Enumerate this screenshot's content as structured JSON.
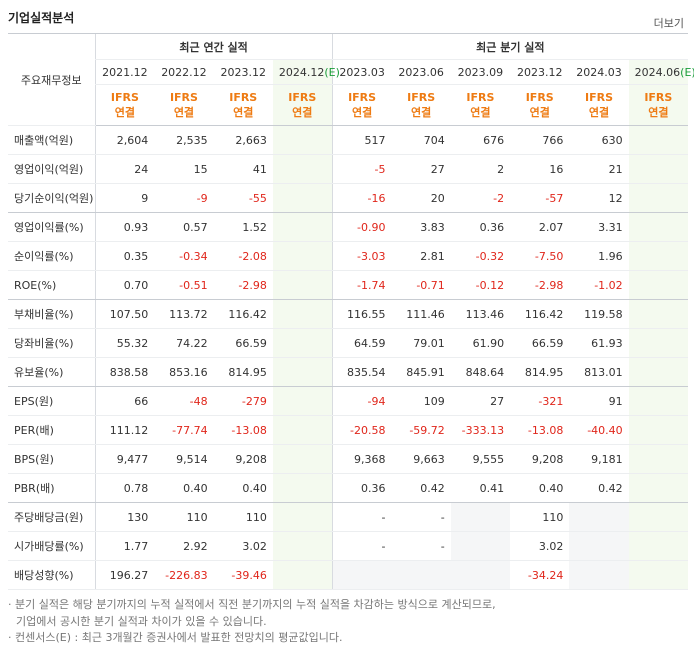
{
  "title": "기업실적분석",
  "more": "더보기",
  "table": {
    "corner": "주요재무정보",
    "groups": [
      {
        "label": "최근 연간 실적",
        "span": 4
      },
      {
        "label": "최근 분기 실적",
        "span": 6
      }
    ],
    "periods": [
      {
        "date": "2021.12"
      },
      {
        "date": "2022.12"
      },
      {
        "date": "2023.12"
      },
      {
        "date": "2024.12",
        "flag": "(E)"
      },
      {
        "date": "2023.03"
      },
      {
        "date": "2023.06"
      },
      {
        "date": "2023.09"
      },
      {
        "date": "2023.12"
      },
      {
        "date": "2024.03"
      },
      {
        "date": "2024.06",
        "flag": "(E)"
      }
    ],
    "basis": [
      [
        "IFRS",
        "연결"
      ],
      [
        "IFRS",
        "연결"
      ],
      [
        "IFRS",
        "연결"
      ],
      [
        "IFRS",
        "연결"
      ],
      [
        "IFRS",
        "연결"
      ],
      [
        "IFRS",
        "연결"
      ],
      [
        "IFRS",
        "연결"
      ],
      [
        "IFRS",
        "연결"
      ],
      [
        "IFRS",
        "연결"
      ],
      [
        "IFRS",
        "연결"
      ]
    ],
    "rows": [
      {
        "label": "매출액(억원)",
        "values": [
          "2,604",
          "2,535",
          "2,663",
          null,
          "517",
          "704",
          "676",
          "766",
          "630",
          null
        ]
      },
      {
        "label": "영업이익(억원)",
        "values": [
          "24",
          "15",
          "41",
          null,
          "-5",
          "27",
          "2",
          "16",
          "21",
          null
        ]
      },
      {
        "label": "당기순이익(억원)",
        "values": [
          "9",
          "-9",
          "-55",
          null,
          "-16",
          "20",
          "-2",
          "-57",
          "12",
          null
        ]
      },
      {
        "label": "영업이익률(%)",
        "values": [
          "0.93",
          "0.57",
          "1.52",
          null,
          "-0.90",
          "3.83",
          "0.36",
          "2.07",
          "3.31",
          null
        ]
      },
      {
        "label": "순이익률(%)",
        "values": [
          "0.35",
          "-0.34",
          "-2.08",
          null,
          "-3.03",
          "2.81",
          "-0.32",
          "-7.50",
          "1.96",
          null
        ]
      },
      {
        "label": "ROE(%)",
        "values": [
          "0.70",
          "-0.51",
          "-2.98",
          null,
          "-1.74",
          "-0.71",
          "-0.12",
          "-2.98",
          "-1.02",
          null
        ]
      },
      {
        "label": "부채비율(%)",
        "values": [
          "107.50",
          "113.72",
          "116.42",
          null,
          "116.55",
          "111.46",
          "113.46",
          "116.42",
          "119.58",
          null
        ]
      },
      {
        "label": "당좌비율(%)",
        "values": [
          "55.32",
          "74.22",
          "66.59",
          null,
          "64.59",
          "79.01",
          "61.90",
          "66.59",
          "61.93",
          null
        ]
      },
      {
        "label": "유보율(%)",
        "values": [
          "838.58",
          "853.16",
          "814.95",
          null,
          "835.54",
          "845.91",
          "848.64",
          "814.95",
          "813.01",
          null
        ]
      },
      {
        "label": "EPS(원)",
        "values": [
          "66",
          "-48",
          "-279",
          null,
          "-94",
          "109",
          "27",
          "-321",
          "91",
          null
        ]
      },
      {
        "label": "PER(배)",
        "values": [
          "111.12",
          "-77.74",
          "-13.08",
          null,
          "-20.58",
          "-59.72",
          "-333.13",
          "-13.08",
          "-40.40",
          null
        ]
      },
      {
        "label": "BPS(원)",
        "values": [
          "9,477",
          "9,514",
          "9,208",
          null,
          "9,368",
          "9,663",
          "9,555",
          "9,208",
          "9,181",
          null
        ]
      },
      {
        "label": "PBR(배)",
        "values": [
          "0.78",
          "0.40",
          "0.40",
          null,
          "0.36",
          "0.42",
          "0.41",
          "0.40",
          "0.42",
          null
        ]
      },
      {
        "label": "주당배당금(원)",
        "values": [
          "130",
          "110",
          "110",
          null,
          "-",
          "-",
          null,
          "110",
          null,
          null
        ]
      },
      {
        "label": "시가배당률(%)",
        "values": [
          "1.77",
          "2.92",
          "3.02",
          null,
          "-",
          "-",
          null,
          "3.02",
          null,
          null
        ]
      },
      {
        "label": "배당성향(%)",
        "values": [
          "196.27",
          "-226.83",
          "-39.46",
          null,
          null,
          null,
          null,
          "-34.24",
          null,
          null
        ]
      }
    ]
  },
  "notes": [
    "· 분기 실적은 해당 분기까지의 누적 실적에서 직전 분기까지의 누적 실적을 차감하는 방식으로 계산되므로,",
    "기업에서 공시한 분기 실적과 차이가 있을 수 있습니다.",
    "· 컨센서스(E) : 최근 3개월간 증권사에서 발표한 전망치의 평균값입니다."
  ]
}
